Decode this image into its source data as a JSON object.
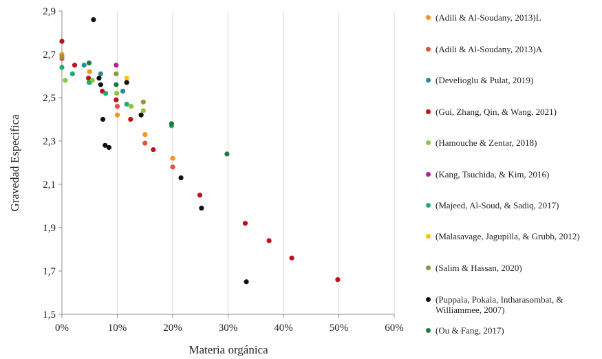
{
  "chart_data": {
    "type": "scatter",
    "xlabel": "Materia orgánica",
    "ylabel": "Gravedad Especifica",
    "xlim": [
      0,
      0.6
    ],
    "ylim": [
      1.5,
      2.9
    ],
    "x_ticks": [
      "0%",
      "10%",
      "20%",
      "30%",
      "40%",
      "50%",
      "60%"
    ],
    "y_ticks": [
      "1,5",
      "1,7",
      "1,9",
      "2,1",
      "2,3",
      "2,5",
      "2,7",
      "2,9"
    ],
    "grid": "vertical",
    "legend_position": "right",
    "series": [
      {
        "name": "(Adili & Al-Soudany, 2013)L",
        "color": "#F7941D",
        "points": [
          [
            0.0,
            2.7
          ],
          [
            0.05,
            2.62
          ],
          [
            0.1,
            2.42
          ],
          [
            0.15,
            2.33
          ],
          [
            0.2,
            2.22
          ]
        ]
      },
      {
        "name": "(Adili & Al-Soudany, 2013)A",
        "color": "#E8503A",
        "points": [
          [
            0.0,
            2.68
          ],
          [
            0.05,
            2.57
          ],
          [
            0.1,
            2.46
          ],
          [
            0.15,
            2.29
          ],
          [
            0.2,
            2.18
          ]
        ]
      },
      {
        "name": "(Develioglu & Pulat, 2019)",
        "color": "#2C8A9A",
        "points": [
          [
            0.0,
            2.76
          ],
          [
            0.04,
            2.65
          ],
          [
            0.07,
            2.61
          ],
          [
            0.11,
            2.53
          ]
        ]
      },
      {
        "name": "(Gui, Zhang, Qin, & Wang, 2021)",
        "color": "#C0101A",
        "points": [
          [
            0.0,
            2.76
          ],
          [
            0.023,
            2.65
          ],
          [
            0.048,
            2.59
          ],
          [
            0.073,
            2.53
          ],
          [
            0.098,
            2.49
          ],
          [
            0.124,
            2.4
          ],
          [
            0.165,
            2.26
          ],
          [
            0.249,
            2.05
          ],
          [
            0.331,
            1.92
          ],
          [
            0.374,
            1.84
          ],
          [
            0.415,
            1.76
          ],
          [
            0.498,
            1.66
          ]
        ]
      },
      {
        "name": "(Hamouche & Zentar, 2018)",
        "color": "#8DC63F",
        "points": [
          [
            0.006,
            2.58
          ],
          [
            0.055,
            2.58
          ],
          [
            0.099,
            2.52
          ],
          [
            0.125,
            2.46
          ],
          [
            0.147,
            2.44
          ]
        ]
      },
      {
        "name": "(Kang, Tsuchida, & Kim, 2016)",
        "color": "#B3209A",
        "points": [
          [
            0.098,
            2.65
          ]
        ]
      },
      {
        "name": "(Majeed, Al-Soud, & Sadiq, 2017)",
        "color": "#1FAE6A",
        "points": [
          [
            0.0,
            2.64
          ],
          [
            0.019,
            2.61
          ],
          [
            0.049,
            2.57
          ],
          [
            0.079,
            2.52
          ],
          [
            0.117,
            2.47
          ],
          [
            0.198,
            2.37
          ]
        ]
      },
      {
        "name": "(Malasavage, Jagupilla, & Grubb, 2012)",
        "color": "#FFC20E",
        "points": [
          [
            0.117,
            2.59
          ]
        ]
      },
      {
        "name": "(Salim & Hassan, 2020)",
        "color": "#8A9A3C",
        "points": [
          [
            0.0,
            2.69
          ],
          [
            0.098,
            2.61
          ],
          [
            0.147,
            2.48
          ]
        ]
      },
      {
        "name": "(Puppala, Pokala, Intharasombat, & Williammee, 2007)",
        "color": "#111111",
        "points": [
          [
            0.057,
            2.86
          ],
          [
            0.067,
            2.59
          ],
          [
            0.07,
            2.56
          ],
          [
            0.074,
            2.4
          ],
          [
            0.078,
            2.28
          ],
          [
            0.085,
            2.27
          ],
          [
            0.117,
            2.57
          ],
          [
            0.143,
            2.42
          ],
          [
            0.215,
            2.13
          ],
          [
            0.252,
            1.99
          ],
          [
            0.333,
            1.65
          ]
        ]
      },
      {
        "name": "(Ou & Fang, 2017)",
        "color": "#1E7A3A",
        "points": [
          [
            0.049,
            2.66
          ],
          [
            0.098,
            2.56
          ],
          [
            0.198,
            2.38
          ],
          [
            0.298,
            2.24
          ]
        ]
      }
    ]
  }
}
